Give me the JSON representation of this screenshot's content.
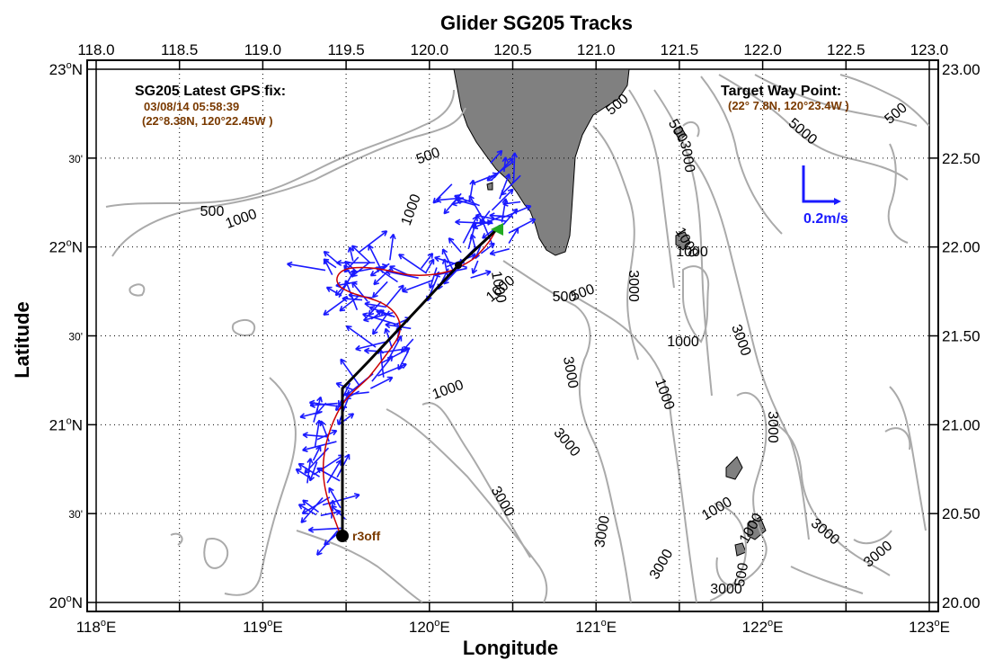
{
  "title": "Glider SG205 Tracks",
  "x_axis_label": "Longitude",
  "y_axis_label": "Latitude",
  "top_ticks": [
    "118.0",
    "118.5",
    "119.0",
    "119.5",
    "120.0",
    "120.5",
    "121.0",
    "121.5",
    "122.0",
    "122.5",
    "123.0"
  ],
  "bottom_ticks": [
    {
      "deg": "118",
      "suf": "E"
    },
    {
      "deg": "119",
      "suf": "E"
    },
    {
      "deg": "120",
      "suf": "E"
    },
    {
      "deg": "121",
      "suf": "E"
    },
    {
      "deg": "122",
      "suf": "E"
    },
    {
      "deg": "123",
      "suf": "E"
    }
  ],
  "left_ticks": [
    {
      "deg": "23",
      "suf": "N"
    },
    {
      "min": "30'"
    },
    {
      "deg": "22",
      "suf": "N"
    },
    {
      "min": "30'"
    },
    {
      "deg": "21",
      "suf": "N"
    },
    {
      "min": "30'"
    },
    {
      "deg": "20",
      "suf": "N"
    }
  ],
  "right_ticks": [
    "23.00",
    "22.50",
    "22.00",
    "21.50",
    "21.00",
    "20.50",
    "20.00"
  ],
  "gps_fix": {
    "heading": "SG205 Latest GPS fix:",
    "date": "03/08/14 05:58:39",
    "position": "(22°8.38N, 120°22.45W )"
  },
  "target": {
    "heading": "Target Way Point:",
    "position": "(22° 7.8N, 120°23.4W )"
  },
  "scale_label": "0.2m/s",
  "station_label": "r3off",
  "contour_labels": [
    "500",
    "1000",
    "500",
    "1000",
    "500",
    "1000",
    "500",
    "1000",
    "500",
    "3000",
    "1000",
    "3000",
    "1000",
    "500",
    "3000",
    "1000",
    "3000",
    "1000",
    "1000",
    "3000",
    "3000",
    "3000",
    "3000",
    "3000",
    "3000",
    "3000",
    "1000",
    "3000",
    "5000",
    "500",
    "1000",
    "500",
    "3000",
    "3000",
    "1000",
    "500",
    "3000",
    "5000",
    "3000",
    "5000"
  ],
  "colors": {
    "land": "#808080",
    "contour": "#aaaaaa",
    "vectors": "#1a1aff",
    "track": "#cc0000",
    "waypath": "#000000",
    "info": "#7a3a00"
  }
}
